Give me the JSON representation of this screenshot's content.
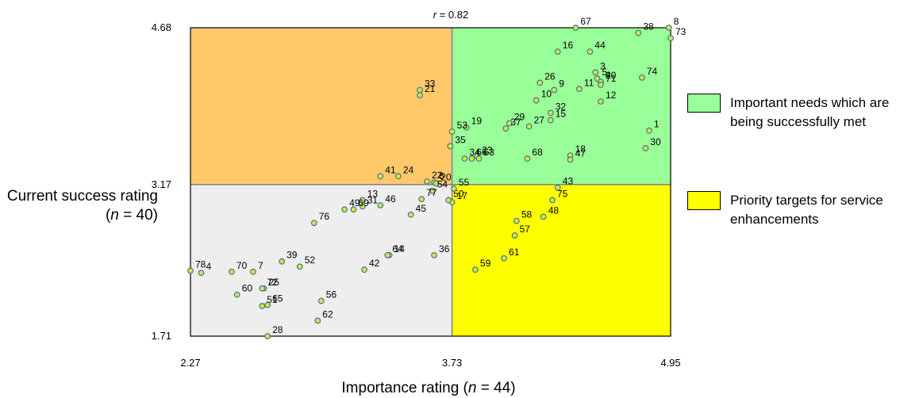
{
  "chart_data": {
    "type": "scatter",
    "title": "",
    "annotation": "r = 0.82",
    "xlabel": "Importance rating (n = 44)",
    "ylabel": "Current success rating (n = 40)",
    "xlim": [
      2.27,
      4.95
    ],
    "ylim": [
      1.71,
      4.68
    ],
    "x_ticks": [
      "2.27",
      "3.73",
      "4.95"
    ],
    "y_ticks": [
      "1.71",
      "3.17",
      "4.68"
    ],
    "x_divider": 3.73,
    "y_divider": 3.17,
    "grid": false,
    "legend": "right",
    "quadrants": [
      {
        "position": "top-left",
        "color": "#FFC96A",
        "label": ""
      },
      {
        "position": "top-right",
        "color": "#99FF99",
        "label": "Important needs which are being successfully met"
      },
      {
        "position": "bottom-left",
        "color": "#EEEEEE",
        "label": ""
      },
      {
        "position": "bottom-right",
        "color": "#FFFF00",
        "label": "Priority targets for service enhancements"
      }
    ],
    "marker_fill": "#CCEE33",
    "marker_edge": "#4A6EA8",
    "points": [
      {
        "label": "1",
        "x": 4.83,
        "y": 3.69
      },
      {
        "label": "2",
        "x": 4.56,
        "y": 4.16
      },
      {
        "label": "3",
        "x": 4.53,
        "y": 4.25
      },
      {
        "label": "4",
        "x": 2.33,
        "y": 2.32
      },
      {
        "label": "5",
        "x": 4.54,
        "y": 4.19
      },
      {
        "label": "6",
        "x": 3.63,
        "y": 3.19
      },
      {
        "label": "7",
        "x": 2.62,
        "y": 2.33
      },
      {
        "label": "8",
        "x": 4.94,
        "y": 4.68
      },
      {
        "label": "9",
        "x": 4.3,
        "y": 4.08
      },
      {
        "label": "10",
        "x": 4.2,
        "y": 3.98
      },
      {
        "label": "11",
        "x": 4.44,
        "y": 4.09
      },
      {
        "label": "12",
        "x": 4.56,
        "y": 3.97
      },
      {
        "label": "13",
        "x": 3.23,
        "y": 3.02
      },
      {
        "label": "14",
        "x": 3.38,
        "y": 2.49
      },
      {
        "label": "15",
        "x": 4.28,
        "y": 3.79
      },
      {
        "label": "16",
        "x": 4.32,
        "y": 4.45
      },
      {
        "label": "17",
        "x": 3.73,
        "y": 3.0
      },
      {
        "label": "18",
        "x": 4.39,
        "y": 3.45
      },
      {
        "label": "19",
        "x": 3.81,
        "y": 3.72
      },
      {
        "label": "20",
        "x": 3.64,
        "y": 3.18
      },
      {
        "label": "21",
        "x": 3.55,
        "y": 4.03
      },
      {
        "label": "22",
        "x": 3.59,
        "y": 3.2
      },
      {
        "label": "23",
        "x": 3.87,
        "y": 3.44
      },
      {
        "label": "24",
        "x": 3.43,
        "y": 3.25
      },
      {
        "label": "25",
        "x": 2.68,
        "y": 2.17
      },
      {
        "label": "26",
        "x": 4.22,
        "y": 4.15
      },
      {
        "label": "27",
        "x": 4.16,
        "y": 3.73
      },
      {
        "label": "28",
        "x": 2.7,
        "y": 1.71
      },
      {
        "label": "29",
        "x": 4.05,
        "y": 3.76
      },
      {
        "label": "30",
        "x": 4.81,
        "y": 3.52
      },
      {
        "label": "31",
        "x": 3.23,
        "y": 2.96
      },
      {
        "label": "32",
        "x": 4.28,
        "y": 3.86
      },
      {
        "label": "33",
        "x": 3.55,
        "y": 4.08
      },
      {
        "label": "34",
        "x": 3.8,
        "y": 3.42
      },
      {
        "label": "35",
        "x": 3.72,
        "y": 3.54
      },
      {
        "label": "36",
        "x": 3.63,
        "y": 2.49
      },
      {
        "label": "37",
        "x": 4.03,
        "y": 3.71
      },
      {
        "label": "38",
        "x": 4.77,
        "y": 4.63
      },
      {
        "label": "39",
        "x": 2.78,
        "y": 2.43
      },
      {
        "label": "40",
        "x": 4.56,
        "y": 4.16
      },
      {
        "label": "41",
        "x": 3.33,
        "y": 3.25
      },
      {
        "label": "42",
        "x": 3.24,
        "y": 2.35
      },
      {
        "label": "43",
        "x": 4.32,
        "y": 3.14
      },
      {
        "label": "44",
        "x": 4.5,
        "y": 4.45
      },
      {
        "label": "45",
        "x": 3.5,
        "y": 2.88
      },
      {
        "label": "46",
        "x": 3.33,
        "y": 2.97
      },
      {
        "label": "47",
        "x": 4.39,
        "y": 3.41
      },
      {
        "label": "48",
        "x": 4.24,
        "y": 2.86
      },
      {
        "label": "49",
        "x": 3.13,
        "y": 2.93
      },
      {
        "label": "50",
        "x": 3.71,
        "y": 3.02
      },
      {
        "label": "51",
        "x": 2.67,
        "y": 2.0
      },
      {
        "label": "52",
        "x": 2.88,
        "y": 2.38
      },
      {
        "label": "53",
        "x": 3.73,
        "y": 3.68
      },
      {
        "label": "54",
        "x": 3.62,
        "y": 3.11
      },
      {
        "label": "55",
        "x": 3.74,
        "y": 3.13
      },
      {
        "label": "56",
        "x": 3.0,
        "y": 2.05
      },
      {
        "label": "57",
        "x": 4.08,
        "y": 2.68
      },
      {
        "label": "58",
        "x": 4.09,
        "y": 2.82
      },
      {
        "label": "59",
        "x": 3.86,
        "y": 2.35
      },
      {
        "label": "60",
        "x": 2.53,
        "y": 2.11
      },
      {
        "label": "61",
        "x": 4.02,
        "y": 2.46
      },
      {
        "label": "62",
        "x": 2.98,
        "y": 1.86
      },
      {
        "label": "63",
        "x": 3.88,
        "y": 3.42
      },
      {
        "label": "64",
        "x": 3.37,
        "y": 2.49
      },
      {
        "label": "65",
        "x": 2.7,
        "y": 2.01
      },
      {
        "label": "66",
        "x": 3.84,
        "y": 3.42
      },
      {
        "label": "67",
        "x": 4.42,
        "y": 4.68
      },
      {
        "label": "68",
        "x": 4.15,
        "y": 3.42
      },
      {
        "label": "69",
        "x": 3.18,
        "y": 2.93
      },
      {
        "label": "70",
        "x": 2.5,
        "y": 2.33
      },
      {
        "label": "71",
        "x": 4.56,
        "y": 4.13
      },
      {
        "label": "72",
        "x": 2.67,
        "y": 2.17
      },
      {
        "label": "73",
        "x": 4.95,
        "y": 4.58
      },
      {
        "label": "74",
        "x": 4.79,
        "y": 4.2
      },
      {
        "label": "75",
        "x": 4.29,
        "y": 3.02
      },
      {
        "label": "76",
        "x": 2.96,
        "y": 2.8
      },
      {
        "label": "77",
        "x": 3.56,
        "y": 3.03
      },
      {
        "label": "78",
        "x": 2.27,
        "y": 2.34
      }
    ]
  },
  "legend": {
    "item1": "Important needs which are being successfully met",
    "item2": "Priority targets for service enhancements"
  },
  "ylabel_parts": {
    "prefix": "Current success rating (",
    "var": "n",
    "suffix": " = 40)"
  },
  "xlabel_parts": {
    "prefix": "Importance rating (",
    "var": "n",
    "suffix": " = 44)"
  },
  "annotation_parts": {
    "var": "r",
    "suffix": " = 0.82"
  }
}
